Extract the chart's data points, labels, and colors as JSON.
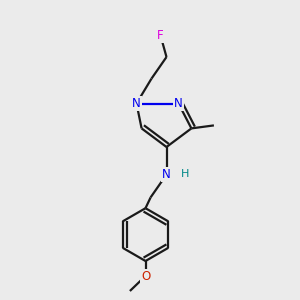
{
  "background_color": "#ebebeb",
  "bond_color": "#1a1a1a",
  "N_color": "#0000ee",
  "F_color": "#dd00dd",
  "O_color": "#cc2200",
  "H_color": "#008888",
  "figsize": [
    3.0,
    3.0
  ],
  "dpi": 100,
  "xlim": [
    0,
    10
  ],
  "ylim": [
    0,
    10
  ],
  "lw": 1.6,
  "fs": 8.5
}
